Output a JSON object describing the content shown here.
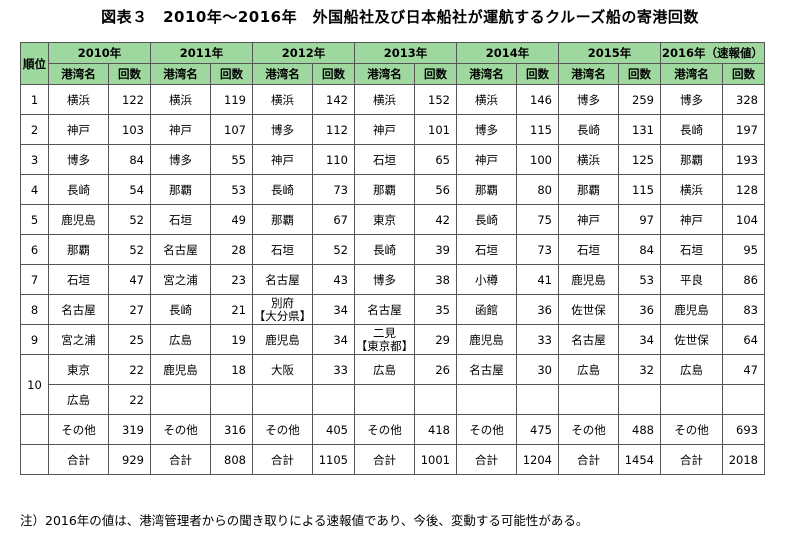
{
  "title": "図表３　2010年～2016年　外国船社及び日本船社が運航するクルーズ船の寄港回数",
  "table": {
    "rank_header": "順位",
    "years": [
      "2010年",
      "2011年",
      "2012年",
      "2013年",
      "2014年",
      "2015年",
      "2016年（速報値）"
    ],
    "sub_port": "港湾名",
    "sub_count": "回数",
    "rows": [
      {
        "rank": "1",
        "cells": [
          [
            "横浜",
            "122"
          ],
          [
            "横浜",
            "119"
          ],
          [
            "横浜",
            "142"
          ],
          [
            "横浜",
            "152"
          ],
          [
            "横浜",
            "146"
          ],
          [
            "博多",
            "259"
          ],
          [
            "博多",
            "328"
          ]
        ]
      },
      {
        "rank": "2",
        "cells": [
          [
            "神戸",
            "103"
          ],
          [
            "神戸",
            "107"
          ],
          [
            "博多",
            "112"
          ],
          [
            "神戸",
            "101"
          ],
          [
            "博多",
            "115"
          ],
          [
            "長崎",
            "131"
          ],
          [
            "長崎",
            "197"
          ]
        ]
      },
      {
        "rank": "3",
        "cells": [
          [
            "博多",
            "84"
          ],
          [
            "博多",
            "55"
          ],
          [
            "神戸",
            "110"
          ],
          [
            "石垣",
            "65"
          ],
          [
            "神戸",
            "100"
          ],
          [
            "横浜",
            "125"
          ],
          [
            "那覇",
            "193"
          ]
        ]
      },
      {
        "rank": "4",
        "cells": [
          [
            "長崎",
            "54"
          ],
          [
            "那覇",
            "53"
          ],
          [
            "長崎",
            "73"
          ],
          [
            "那覇",
            "56"
          ],
          [
            "那覇",
            "80"
          ],
          [
            "那覇",
            "115"
          ],
          [
            "横浜",
            "128"
          ]
        ]
      },
      {
        "rank": "5",
        "cells": [
          [
            "鹿児島",
            "52"
          ],
          [
            "石垣",
            "49"
          ],
          [
            "那覇",
            "67"
          ],
          [
            "東京",
            "42"
          ],
          [
            "長崎",
            "75"
          ],
          [
            "神戸",
            "97"
          ],
          [
            "神戸",
            "104"
          ]
        ]
      },
      {
        "rank": "6",
        "cells": [
          [
            "那覇",
            "52"
          ],
          [
            "名古屋",
            "28"
          ],
          [
            "石垣",
            "52"
          ],
          [
            "長崎",
            "39"
          ],
          [
            "石垣",
            "73"
          ],
          [
            "石垣",
            "84"
          ],
          [
            "石垣",
            "95"
          ]
        ]
      },
      {
        "rank": "7",
        "cells": [
          [
            "石垣",
            "47"
          ],
          [
            "宮之浦",
            "23"
          ],
          [
            "名古屋",
            "43"
          ],
          [
            "博多",
            "38"
          ],
          [
            "小樽",
            "41"
          ],
          [
            "鹿児島",
            "53"
          ],
          [
            "平良",
            "86"
          ]
        ]
      },
      {
        "rank": "8",
        "cells": [
          [
            "名古屋",
            "27"
          ],
          [
            "長崎",
            "21"
          ],
          [
            "別府\n【大分県】",
            "34"
          ],
          [
            "名古屋",
            "35"
          ],
          [
            "函館",
            "36"
          ],
          [
            "佐世保",
            "36"
          ],
          [
            "鹿児島",
            "83"
          ]
        ]
      },
      {
        "rank": "9",
        "cells": [
          [
            "宮之浦",
            "25"
          ],
          [
            "広島",
            "19"
          ],
          [
            "鹿児島",
            "34"
          ],
          [
            "二見\n【東京都】",
            "29"
          ],
          [
            "鹿児島",
            "33"
          ],
          [
            "名古屋",
            "34"
          ],
          [
            "佐世保",
            "64"
          ]
        ]
      },
      {
        "rank": "10",
        "cells": [
          [
            "東京",
            "22"
          ],
          [
            "鹿児島",
            "18"
          ],
          [
            "大阪",
            "33"
          ],
          [
            "広島",
            "26"
          ],
          [
            "名古屋",
            "30"
          ],
          [
            "広島",
            "32"
          ],
          [
            "広島",
            "47"
          ]
        ]
      },
      {
        "rank": "",
        "cells": [
          [
            "広島",
            "22"
          ],
          [
            "",
            ""
          ],
          [
            "",
            ""
          ],
          [
            "",
            ""
          ],
          [
            "",
            ""
          ],
          [
            "",
            ""
          ],
          [
            "",
            ""
          ]
        ]
      },
      {
        "rank": "",
        "cells": [
          [
            "その他",
            "319"
          ],
          [
            "その他",
            "316"
          ],
          [
            "その他",
            "405"
          ],
          [
            "その他",
            "418"
          ],
          [
            "その他",
            "475"
          ],
          [
            "その他",
            "488"
          ],
          [
            "その他",
            "693"
          ]
        ]
      },
      {
        "rank": "",
        "cells": [
          [
            "合計",
            "929"
          ],
          [
            "合計",
            "808"
          ],
          [
            "合計",
            "1105"
          ],
          [
            "合計",
            "1001"
          ],
          [
            "合計",
            "1204"
          ],
          [
            "合計",
            "1454"
          ],
          [
            "合計",
            "2018"
          ]
        ]
      }
    ]
  },
  "note": "注）2016年の値は、港湾管理者からの聞き取りによる速報値であり、今後、変動する可能性がある。",
  "colors": {
    "header_bg": "#9fd89f",
    "border": "#555555"
  }
}
